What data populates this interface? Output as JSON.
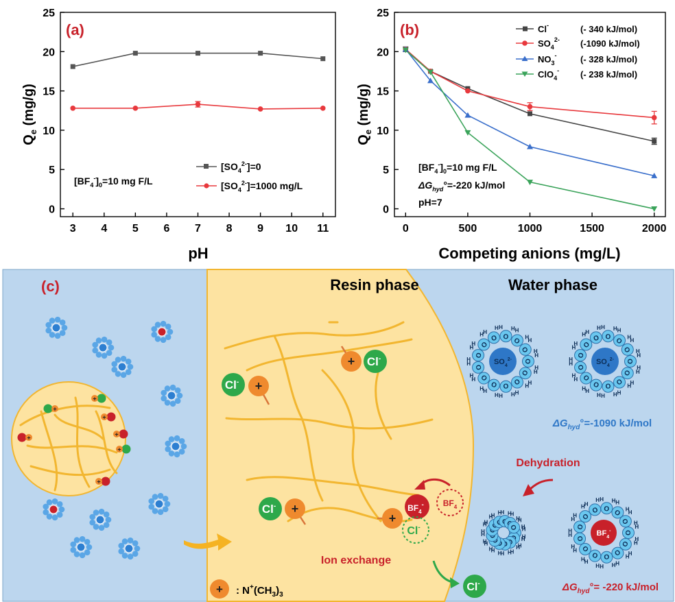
{
  "charts": {
    "a": {
      "panel_label": "(a)",
      "ylabel_main": "Q",
      "ylabel_sub": "e",
      "ylabel_unit": " (mg/g)",
      "xlabel": "pH",
      "annotation": {
        "t1": "[BF",
        "t2": "4",
        "t3": "-",
        "t4": "]",
        "t5": "0",
        "t6": "=10 mg F/L"
      },
      "legend": [
        {
          "p1": "[SO",
          "p2": "4",
          "p3": "2-",
          "p4": "]=0"
        },
        {
          "p1": "[SO",
          "p2": "4",
          "p3": "2-",
          "p4": "]=1000 mg/L"
        }
      ],
      "xticks": [
        "3",
        "4",
        "5",
        "6",
        "7",
        "8",
        "9",
        "10",
        "11"
      ],
      "yticks": [
        "0",
        "5",
        "10",
        "15",
        "20",
        "25"
      ]
    },
    "b": {
      "panel_label": "(b)",
      "ylabel_main": "Q",
      "ylabel_sub": "e",
      "ylabel_unit": " (mg/g)",
      "xlabel": "Competing anions (mg/L)",
      "annotation": {
        "t1": "[BF",
        "t2": "4",
        "t3": "-",
        "t4": "]",
        "t5": "0",
        "t6": "=10 mg F/L",
        "g1": "ΔG",
        "g2": "hyd",
        "g3": "°=-220 kJ/mol",
        "ph": "pH=7"
      },
      "legend": [
        {
          "p1": "Cl",
          "p2": "",
          "p3": "-",
          "p4": "",
          "energy": "(- 340  kJ/mol)"
        },
        {
          "p1": "SO",
          "p2": "4",
          "p3": "2-",
          "p4": "",
          "energy": "(-1090  kJ/mol)"
        },
        {
          "p1": "NO",
          "p2": "3",
          "p3": "-",
          "p4": "",
          "energy": "(- 328  kJ/mol)"
        },
        {
          "p1": "ClO",
          "p2": "4",
          "p3": "-",
          "p4": "",
          "energy": "(- 238  kJ/mol)"
        }
      ],
      "xticks": [
        "0",
        "500",
        "1000",
        "1500",
        "2000"
      ],
      "yticks": [
        "0",
        "5",
        "10",
        "15",
        "20",
        "25"
      ]
    }
  },
  "chart_data": [
    {
      "type": "line",
      "xlim": [
        2.6,
        11.4
      ],
      "ylim": [
        -1,
        25
      ],
      "x": [
        3,
        5,
        7,
        9,
        11
      ],
      "series": [
        {
          "name": "[SO4 2-]=0",
          "color": "#555555",
          "marker": "square",
          "values": [
            18.1,
            19.8,
            19.8,
            19.8,
            19.1
          ]
        },
        {
          "name": "[SO4 2-]=1000 mg/L",
          "color": "#e8393d",
          "marker": "circle",
          "values": [
            12.8,
            12.8,
            13.3,
            12.7,
            12.8
          ]
        }
      ],
      "errors": [
        {
          "series": 1,
          "x": 7,
          "err": 0.35
        }
      ]
    },
    {
      "type": "line",
      "xlim": [
        -90,
        2090
      ],
      "ylim": [
        -1,
        25
      ],
      "x": [
        0,
        200,
        500,
        1000,
        2000
      ],
      "series": [
        {
          "name": "Cl-",
          "color": "#444444",
          "marker": "square",
          "values": [
            20.3,
            17.5,
            15.3,
            12.1,
            8.6
          ]
        },
        {
          "name": "SO4 2-",
          "color": "#e8393d",
          "marker": "circle",
          "values": [
            20.3,
            17.5,
            15.0,
            13.0,
            11.6
          ]
        },
        {
          "name": "NO3-",
          "color": "#3a6fcb",
          "marker": "triangle-up",
          "values": [
            20.3,
            16.3,
            11.9,
            7.9,
            4.2
          ]
        },
        {
          "name": "ClO4-",
          "color": "#3aa35a",
          "marker": "triangle-down",
          "values": [
            20.2,
            17.4,
            9.7,
            3.4,
            0.0
          ]
        }
      ],
      "errors": [
        {
          "series": 1,
          "x": 1000,
          "err": 0.5
        },
        {
          "series": 1,
          "x": 2000,
          "err": 0.8
        },
        {
          "series": 0,
          "x": 2000,
          "err": 0.4
        },
        {
          "series": 0,
          "x": 0,
          "err": 0.3
        }
      ]
    }
  ],
  "schematic": {
    "panel_label": "(c)",
    "resin_title": "Resin phase",
    "water_title": "Water phase",
    "plus": "+",
    "cl": "Cl",
    "cl_sup": "-",
    "bf": "BF",
    "bf_sub": "4",
    "bf_sup": "-",
    "so": "SO",
    "so_sub": "4",
    "so_sup": "2-",
    "h": "H",
    "o": "O",
    "dg_so4_pre": "ΔG",
    "dg_so4_sub": "hyd",
    "dg_so4_post": "°=-1090 kJ/mol",
    "dg_bf4_pre": "ΔG",
    "dg_bf4_sub": "hyd",
    "dg_bf4_post": "°= -220 kJ/mol",
    "dehydration": "Dehydration",
    "ion_exchange": "Ion exchange",
    "legend_label": ": N",
    "legend_sup": "+",
    "legend_tail": "(CH",
    "legend_sub": "3",
    "legend_end": ")",
    "legend_sub2": "3",
    "colors": {
      "outer_bg": "#bcd6ee",
      "resin_bg": "#fde3a1",
      "fiber": "#f2b630",
      "green": "#2ea84a",
      "orange": "#ef8a2e",
      "red": "#c8212a",
      "blue": "#2d7fd1",
      "blue_dark": "#2e77c7",
      "water_cyan": "#6ac7ef"
    }
  }
}
